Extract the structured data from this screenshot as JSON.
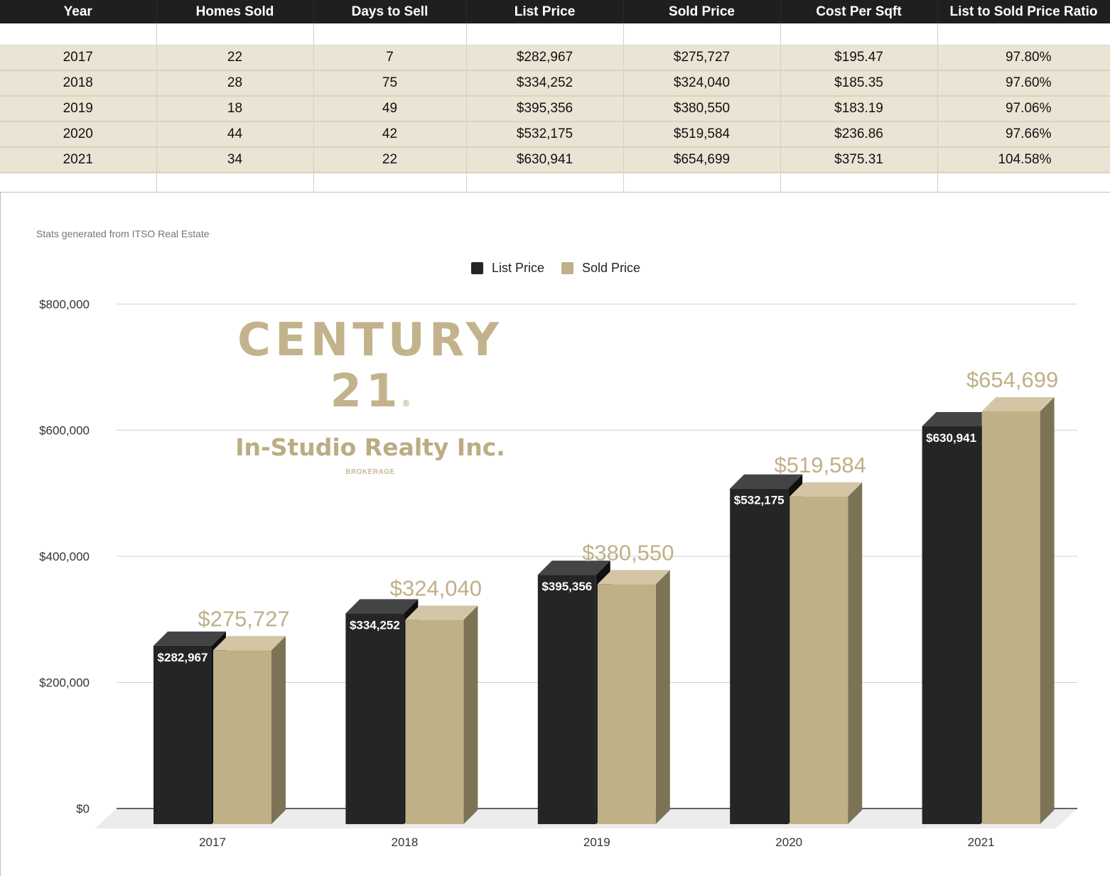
{
  "table": {
    "headers": [
      "Year",
      "Homes Sold",
      "Days to Sell",
      "List Price",
      "Sold Price",
      "Cost Per Sqft",
      "List to Sold Price Ratio"
    ],
    "rows": [
      [
        "2017",
        "22",
        "7",
        "$282,967",
        "$275,727",
        "$195.47",
        "97.80%"
      ],
      [
        "2018",
        "28",
        "75",
        "$334,252",
        "$324,040",
        "$185.35",
        "97.60%"
      ],
      [
        "2019",
        "18",
        "49",
        "$395,356",
        "$380,550",
        "$183.19",
        "97.06%"
      ],
      [
        "2020",
        "44",
        "42",
        "$532,175",
        "$519,584",
        "$236.86",
        "97.66%"
      ],
      [
        "2021",
        "34",
        "22",
        "$630,941",
        "$654,699",
        "$375.31",
        "104.58%"
      ]
    ]
  },
  "logo": {
    "line1": "CENTURY 21",
    "registered": "®",
    "line2": "In-Studio Realty Inc.",
    "line3": "BROKERAGE"
  },
  "chart_data": {
    "type": "bar",
    "subtitle": "Stats generated from ITSO Real Estate",
    "categories": [
      "2017",
      "2018",
      "2019",
      "2020",
      "2021"
    ],
    "series": [
      {
        "name": "List Price",
        "values": [
          282967,
          334252,
          395356,
          532175,
          630941
        ],
        "labels": [
          "$282,967",
          "$334,252",
          "$395,356",
          "$532,175",
          "$630,941"
        ],
        "color": "#252527"
      },
      {
        "name": "Sold Price",
        "values": [
          275727,
          324040,
          380550,
          519584,
          654699
        ],
        "labels": [
          "$275,727",
          "$324,040",
          "$380,550",
          "$519,584",
          "$654,699"
        ],
        "color": "#bfb087"
      }
    ],
    "y_ticks": [
      "$0",
      "$200,000",
      "$400,000",
      "$600,000",
      "$800,000"
    ],
    "ylim": [
      0,
      800000
    ],
    "grid": true,
    "legend_position": "top-center",
    "style": "3d"
  }
}
